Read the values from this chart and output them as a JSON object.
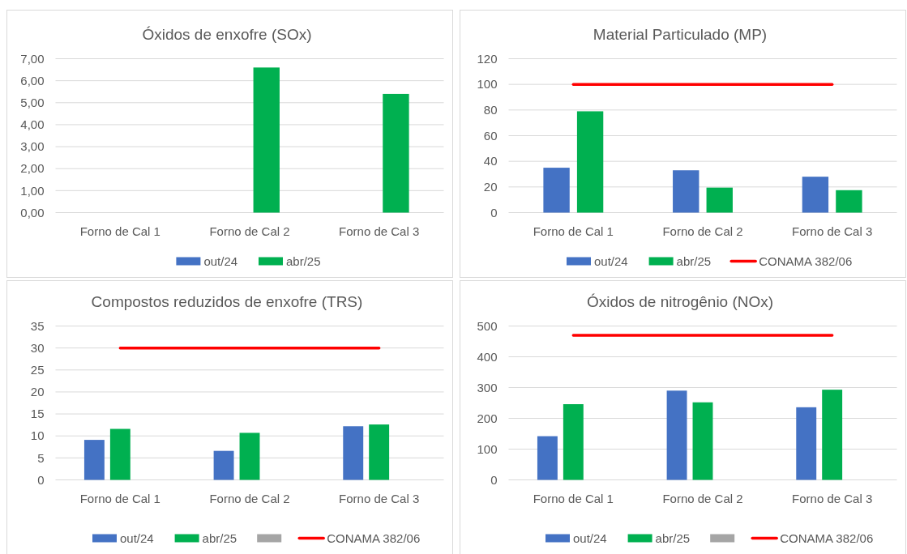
{
  "chart_data": [
    {
      "type": "bar",
      "title": "Óxidos de enxofre (SOx)",
      "categories": [
        "Forno de Cal 1",
        "Forno de Cal 2",
        "Forno de Cal 3"
      ],
      "series": [
        {
          "name": "out/24",
          "color": "#4472c4",
          "values": [
            null,
            null,
            null
          ]
        },
        {
          "name": "abr/25",
          "color": "#00b050",
          "values": [
            null,
            6.6,
            5.4
          ]
        }
      ],
      "ylim": [
        0,
        7
      ],
      "yticks": [
        {
          "value": 0,
          "label": "0,00"
        },
        {
          "value": 1,
          "label": "1,00"
        },
        {
          "value": 2,
          "label": "2,00"
        },
        {
          "value": 3,
          "label": "3,00"
        },
        {
          "value": 4,
          "label": "4,00"
        },
        {
          "value": 5,
          "label": "5,00"
        },
        {
          "value": 6,
          "label": "6,00"
        },
        {
          "value": 7,
          "label": "7,00"
        }
      ],
      "grid": "y",
      "legend": "bottom"
    },
    {
      "type": "bar",
      "title": "Material  Particulado (MP)",
      "categories": [
        "Forno de Cal 1",
        "Forno de Cal 2",
        "Forno de Cal 3"
      ],
      "series": [
        {
          "name": "out/24",
          "color": "#4472c4",
          "values": [
            35,
            33,
            28
          ]
        },
        {
          "name": "abr/25",
          "color": "#00b050",
          "values": [
            79,
            19.5,
            17.5
          ]
        },
        {
          "name": "CONAMA 382/06",
          "color": "#ff0000",
          "type": "line",
          "values": [
            100,
            100,
            100
          ]
        }
      ],
      "ylim": [
        0,
        120
      ],
      "yticks": [
        0,
        20,
        40,
        60,
        80,
        100,
        120
      ],
      "grid": "y",
      "legend": "bottom"
    },
    {
      "type": "bar",
      "title": "Compostos reduzidos de enxofre (TRS)",
      "categories": [
        "Forno de Cal 1",
        "Forno de Cal 2",
        "Forno de Cal 3"
      ],
      "series": [
        {
          "name": "out/24",
          "color": "#4472c4",
          "values": [
            9.1,
            6.6,
            12.2
          ]
        },
        {
          "name": "abr/25",
          "color": "#00b050",
          "values": [
            11.6,
            10.7,
            12.6
          ]
        },
        {
          "color": "#a5a5a5",
          "values": [
            null,
            null,
            null
          ]
        },
        {
          "name": "CONAMA 382/06",
          "color": "#ff0000",
          "type": "line",
          "values": [
            30,
            30,
            30
          ]
        }
      ],
      "ylim": [
        0,
        35
      ],
      "yticks": [
        0,
        5,
        10,
        15,
        20,
        25,
        30,
        35
      ],
      "grid": "y",
      "legend": "bottom"
    },
    {
      "type": "bar",
      "title": "Óxidos de nitrogênio (NOx)",
      "categories": [
        "Forno de Cal 1",
        "Forno de Cal 2",
        "Forno de Cal 3"
      ],
      "series": [
        {
          "name": "out/24",
          "color": "#4472c4",
          "values": [
            142,
            290,
            236
          ]
        },
        {
          "name": "abr/25",
          "color": "#00b050",
          "values": [
            246,
            252,
            293
          ]
        },
        {
          "color": "#a5a5a5",
          "values": [
            null,
            null,
            null
          ]
        },
        {
          "name": "CONAMA 382/06",
          "color": "#ff0000",
          "type": "line",
          "values": [
            470,
            470,
            470
          ]
        }
      ],
      "ylim": [
        0,
        500
      ],
      "yticks": [
        0,
        100,
        200,
        300,
        400,
        500
      ],
      "grid": "y",
      "legend": "bottom"
    }
  ]
}
